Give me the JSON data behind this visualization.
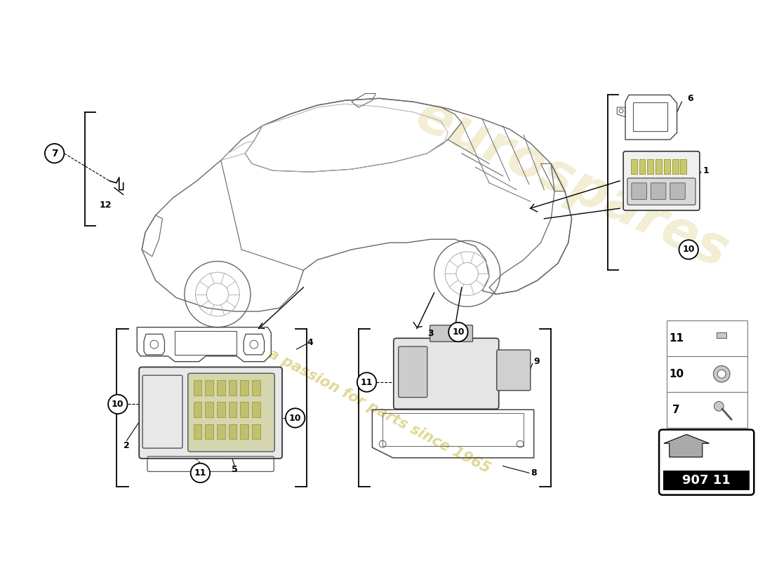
{
  "bg_color": "#ffffff",
  "watermark_text": "a passion for parts since 1965",
  "part_number": "907 11",
  "car_color": "#666666",
  "line_color": "#333333"
}
